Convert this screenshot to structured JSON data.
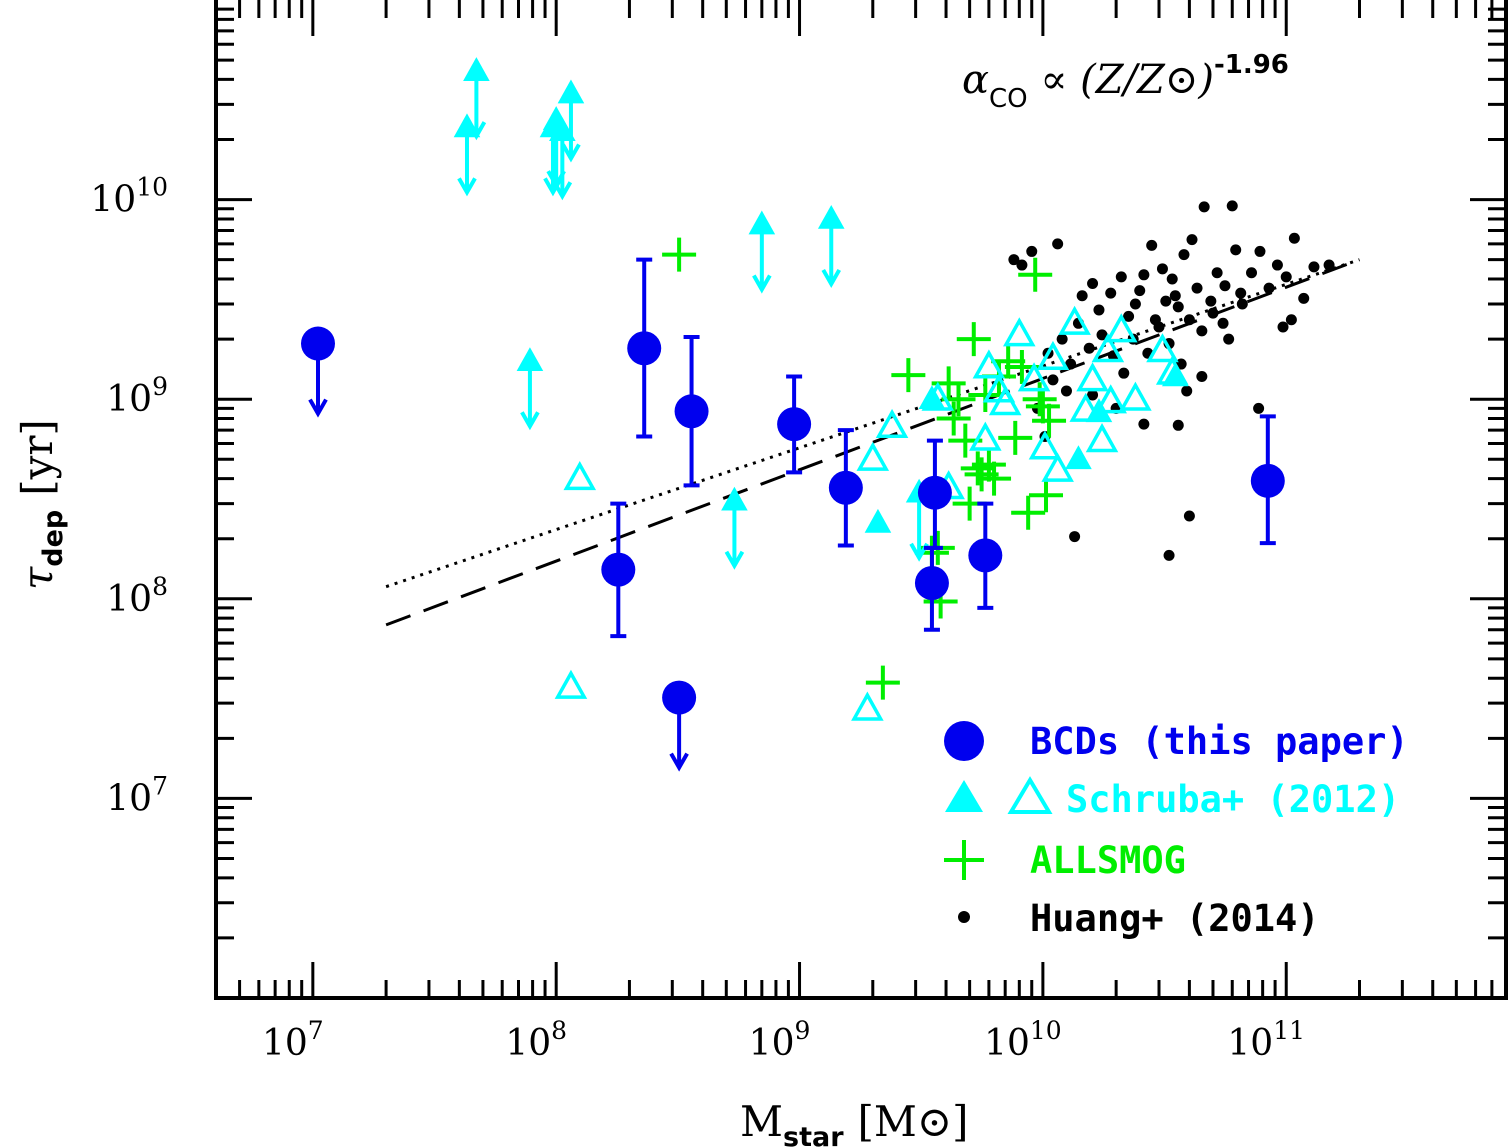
{
  "chart_data": {
    "type": "scatter",
    "xscale": "log",
    "yscale": "log",
    "xlim": [
      4000000,
      800000000000
    ],
    "ylim": [
      1000000,
      100000000000
    ],
    "xlabel": {
      "main": "M",
      "sub": "star",
      "unit": "[M⊙]"
    },
    "ylabel": {
      "main": "τ",
      "sub": "dep",
      "unit": "[yr]"
    },
    "xtick_labels": [
      {
        "value": 10000000,
        "base": "10",
        "exp": "7"
      },
      {
        "value": 100000000,
        "base": "10",
        "exp": "8"
      },
      {
        "value": 1000000000,
        "base": "10",
        "exp": "9"
      },
      {
        "value": 10000000000,
        "base": "10",
        "exp": "10"
      },
      {
        "value": 100000000000,
        "base": "10",
        "exp": "11"
      }
    ],
    "ytick_labels": [
      {
        "value": 10000000,
        "base": "10",
        "exp": "7"
      },
      {
        "value": 100000000,
        "base": "10",
        "exp": "8"
      },
      {
        "value": 1000000000,
        "base": "10",
        "exp": "9"
      },
      {
        "value": 10000000000,
        "base": "10",
        "exp": "10"
      }
    ],
    "annotation": {
      "pre": "α",
      "sub": "CO",
      "mid": " ∝ (Z/Z⊙)",
      "sup": "-1.96"
    },
    "legend": [
      {
        "label": "BCDs (this paper)",
        "marker": "filled-circle",
        "color": "#0000ee"
      },
      {
        "label": "Schruba+ (2012)",
        "marker": "triangles",
        "color": "#00ffff"
      },
      {
        "label": "ALLSMOG",
        "marker": "plus",
        "color": "#00ee00"
      },
      {
        "label": "Huang+ (2014)",
        "marker": "dot",
        "color": "#000000"
      }
    ],
    "colors": {
      "bcd": "#0000ee",
      "schruba": "#00ffff",
      "allsmog": "#00ee00",
      "huang": "#000000"
    },
    "lines": [
      {
        "style": "dotted",
        "x": [
          20000000,
          200000000000
        ],
        "y": [
          115000000,
          5000000000
        ]
      },
      {
        "style": "dashed",
        "x": [
          20000000,
          200000000000
        ],
        "y": [
          74000000,
          5000000000
        ]
      }
    ],
    "series": [
      {
        "name": "BCDs (this paper)",
        "marker": "filled-circle",
        "points": [
          {
            "x": 10500000,
            "y": 1900000000,
            "upper_limit": true
          },
          {
            "x": 180000000,
            "y": 140000000,
            "err": [
              65000000,
              300000000
            ]
          },
          {
            "x": 230000000,
            "y": 1800000000,
            "err": [
              650000000,
              5000000000
            ]
          },
          {
            "x": 320000000,
            "y": 32000000,
            "upper_limit": true
          },
          {
            "x": 360000000,
            "y": 870000000,
            "err": [
              370000000,
              2050000000
            ]
          },
          {
            "x": 950000000,
            "y": 750000000,
            "err": [
              430000000,
              1300000000
            ]
          },
          {
            "x": 1550000000,
            "y": 360000000,
            "err": [
              185000000,
              700000000
            ]
          },
          {
            "x": 3500000000,
            "y": 120000000,
            "err": [
              70000000,
              180000000
            ]
          },
          {
            "x": 3600000000,
            "y": 340000000,
            "err": [
              180000000,
              620000000
            ]
          },
          {
            "x": 5800000000,
            "y": 165000000,
            "err": [
              90000000,
              300000000
            ]
          },
          {
            "x": 84000000000,
            "y": 390000000,
            "err": [
              190000000,
              820000000
            ]
          }
        ]
      },
      {
        "name": "Schruba+ (2012) limits",
        "marker": "filled-triangle-arrows",
        "points": [
          {
            "x": 43000000,
            "y": 23000000000
          },
          {
            "x": 47000000,
            "y": 44000000000
          },
          {
            "x": 97000000,
            "y": 23000000000
          },
          {
            "x": 100000000,
            "y": 25000000000
          },
          {
            "x": 106000000,
            "y": 22000000000
          },
          {
            "x": 115000000,
            "y": 34000000000
          },
          {
            "x": 78000000,
            "y": 1550000000
          },
          {
            "x": 540000000,
            "y": 310000000
          },
          {
            "x": 700000000,
            "y": 7500000000
          },
          {
            "x": 1350000000,
            "y": 8000000000
          },
          {
            "x": 3100000000,
            "y": 340000000
          }
        ]
      },
      {
        "name": "Schruba+ (2012) filled",
        "marker": "filled-triangle",
        "points": [
          {
            "x": 2100000000,
            "y": 240000000
          },
          {
            "x": 3500000000,
            "y": 1000000000
          },
          {
            "x": 14000000000,
            "y": 500000000
          },
          {
            "x": 17000000000,
            "y": 860000000
          },
          {
            "x": 35000000000,
            "y": 1300000000
          }
        ]
      },
      {
        "name": "Schruba+ (2012) open",
        "marker": "open-triangle",
        "points": [
          {
            "x": 115000000,
            "y": 36000000
          },
          {
            "x": 125000000,
            "y": 400000000
          },
          {
            "x": 1900000000,
            "y": 28000000
          },
          {
            "x": 2000000000,
            "y": 500000000
          },
          {
            "x": 2400000000,
            "y": 730000000
          },
          {
            "x": 3700000000,
            "y": 1000000000
          },
          {
            "x": 4100000000,
            "y": 360000000
          },
          {
            "x": 5800000000,
            "y": 630000000
          },
          {
            "x": 6000000000,
            "y": 1450000000
          },
          {
            "x": 6600000000,
            "y": 1100000000
          },
          {
            "x": 7000000000,
            "y": 950000000
          },
          {
            "x": 8000000000,
            "y": 2100000000
          },
          {
            "x": 9200000000,
            "y": 1250000000
          },
          {
            "x": 10200000000,
            "y": 570000000
          },
          {
            "x": 11000000000,
            "y": 1600000000
          },
          {
            "x": 11500000000,
            "y": 440000000
          },
          {
            "x": 13500000000,
            "y": 2400000000
          },
          {
            "x": 15000000000,
            "y": 880000000
          },
          {
            "x": 16000000000,
            "y": 1250000000
          },
          {
            "x": 17500000000,
            "y": 620000000
          },
          {
            "x": 18500000000,
            "y": 1750000000
          },
          {
            "x": 19000000000,
            "y": 970000000
          },
          {
            "x": 21000000000,
            "y": 2200000000
          },
          {
            "x": 24000000000,
            "y": 1000000000
          },
          {
            "x": 31000000000,
            "y": 1750000000
          },
          {
            "x": 34000000000,
            "y": 1350000000
          }
        ]
      },
      {
        "name": "ALLSMOG",
        "marker": "plus",
        "points": [
          {
            "x": 320000000,
            "y": 5300000000
          },
          {
            "x": 2200000000,
            "y": 38000000
          },
          {
            "x": 2800000000,
            "y": 1320000000
          },
          {
            "x": 3500000000,
            "y": 170000000
          },
          {
            "x": 3700000000,
            "y": 180000000
          },
          {
            "x": 3800000000,
            "y": 97000000
          },
          {
            "x": 4100000000,
            "y": 1200000000
          },
          {
            "x": 4300000000,
            "y": 800000000
          },
          {
            "x": 4500000000,
            "y": 1000000000
          },
          {
            "x": 4800000000,
            "y": 620000000
          },
          {
            "x": 5000000000,
            "y": 300000000
          },
          {
            "x": 5200000000,
            "y": 2000000000
          },
          {
            "x": 5400000000,
            "y": 450000000
          },
          {
            "x": 5600000000,
            "y": 420000000
          },
          {
            "x": 5800000000,
            "y": 1050000000
          },
          {
            "x": 6000000000,
            "y": 470000000
          },
          {
            "x": 6300000000,
            "y": 400000000
          },
          {
            "x": 6600000000,
            "y": 1300000000
          },
          {
            "x": 7200000000,
            "y": 1550000000
          },
          {
            "x": 7700000000,
            "y": 640000000
          },
          {
            "x": 8200000000,
            "y": 1450000000
          },
          {
            "x": 8700000000,
            "y": 270000000
          },
          {
            "x": 9300000000,
            "y": 4200000000
          },
          {
            "x": 9700000000,
            "y": 1000000000
          },
          {
            "x": 10000000000,
            "y": 920000000
          },
          {
            "x": 10300000000,
            "y": 330000000
          },
          {
            "x": 10600000000,
            "y": 780000000
          }
        ]
      },
      {
        "name": "Huang+ (2014)",
        "marker": "dot",
        "points": [
          {
            "x": 7600000000,
            "y": 5000000000
          },
          {
            "x": 8200000000,
            "y": 4700000000
          },
          {
            "x": 9000000000,
            "y": 5500000000
          },
          {
            "x": 11500000000,
            "y": 6000000000
          },
          {
            "x": 14500000000,
            "y": 3300000000
          },
          {
            "x": 16000000000,
            "y": 3800000000
          },
          {
            "x": 17000000000,
            "y": 2800000000
          },
          {
            "x": 19000000000,
            "y": 3400000000
          },
          {
            "x": 21000000000,
            "y": 4100000000
          },
          {
            "x": 22500000000,
            "y": 2600000000
          },
          {
            "x": 24000000000,
            "y": 3000000000
          },
          {
            "x": 26000000000,
            "y": 4200000000
          },
          {
            "x": 28000000000,
            "y": 5900000000
          },
          {
            "x": 29000000000,
            "y": 2500000000
          },
          {
            "x": 32000000000,
            "y": 3100000000
          },
          {
            "x": 34000000000,
            "y": 4000000000
          },
          {
            "x": 36000000000,
            "y": 2900000000
          },
          {
            "x": 38000000000,
            "y": 5300000000
          },
          {
            "x": 41000000000,
            "y": 6300000000
          },
          {
            "x": 43000000000,
            "y": 3600000000
          },
          {
            "x": 46000000000,
            "y": 9200000000
          },
          {
            "x": 49000000000,
            "y": 3100000000
          },
          {
            "x": 52000000000,
            "y": 4300000000
          },
          {
            "x": 56000000000,
            "y": 3700000000
          },
          {
            "x": 60000000000,
            "y": 9300000000
          },
          {
            "x": 62000000000,
            "y": 5600000000
          },
          {
            "x": 66000000000,
            "y": 3000000000
          },
          {
            "x": 72000000000,
            "y": 4300000000
          },
          {
            "x": 78000000000,
            "y": 5500000000
          },
          {
            "x": 85000000000,
            "y": 3600000000
          },
          {
            "x": 92000000000,
            "y": 4700000000
          },
          {
            "x": 100000000000,
            "y": 4100000000
          },
          {
            "x": 108000000000,
            "y": 6400000000
          },
          {
            "x": 118000000000,
            "y": 3200000000
          },
          {
            "x": 130000000000,
            "y": 4600000000
          },
          {
            "x": 150000000000,
            "y": 4700000000
          },
          {
            "x": 10500000000,
            "y": 1700000000
          },
          {
            "x": 12000000000,
            "y": 2000000000
          },
          {
            "x": 13000000000,
            "y": 1500000000
          },
          {
            "x": 14000000000,
            "y": 2400000000
          },
          {
            "x": 15500000000,
            "y": 1800000000
          },
          {
            "x": 17500000000,
            "y": 2100000000
          },
          {
            "x": 19500000000,
            "y": 1650000000
          },
          {
            "x": 21500000000,
            "y": 1350000000
          },
          {
            "x": 23500000000,
            "y": 2000000000
          },
          {
            "x": 27000000000,
            "y": 1700000000
          },
          {
            "x": 30000000000,
            "y": 2300000000
          },
          {
            "x": 33000000000,
            "y": 1900000000
          },
          {
            "x": 37000000000,
            "y": 1500000000
          },
          {
            "x": 40000000000,
            "y": 2500000000
          },
          {
            "x": 45000000000,
            "y": 2200000000
          },
          {
            "x": 50000000000,
            "y": 2700000000
          },
          {
            "x": 55000000000,
            "y": 2400000000
          },
          {
            "x": 11000000000,
            "y": 1250000000
          },
          {
            "x": 12500000000,
            "y": 1100000000
          },
          {
            "x": 16000000000,
            "y": 1050000000
          },
          {
            "x": 20000000000,
            "y": 900000000
          },
          {
            "x": 26000000000,
            "y": 750000000
          },
          {
            "x": 39000000000,
            "y": 1100000000
          },
          {
            "x": 10200000000,
            "y": 650000000
          },
          {
            "x": 9500000000,
            "y": 900000000
          },
          {
            "x": 77000000000,
            "y": 900000000
          },
          {
            "x": 40000000000,
            "y": 260000000
          },
          {
            "x": 13500000000,
            "y": 205000000
          },
          {
            "x": 33000000000,
            "y": 165000000
          },
          {
            "x": 36000000000,
            "y": 740000000
          },
          {
            "x": 25000000000,
            "y": 3500000000
          },
          {
            "x": 31000000000,
            "y": 4500000000
          },
          {
            "x": 58000000000,
            "y": 2000000000
          },
          {
            "x": 65000000000,
            "y": 3400000000
          },
          {
            "x": 105000000000,
            "y": 2500000000
          },
          {
            "x": 97000000000,
            "y": 2300000000
          },
          {
            "x": 45000000000,
            "y": 1300000000
          },
          {
            "x": 35000000000,
            "y": 3300000000
          }
        ]
      }
    ]
  }
}
